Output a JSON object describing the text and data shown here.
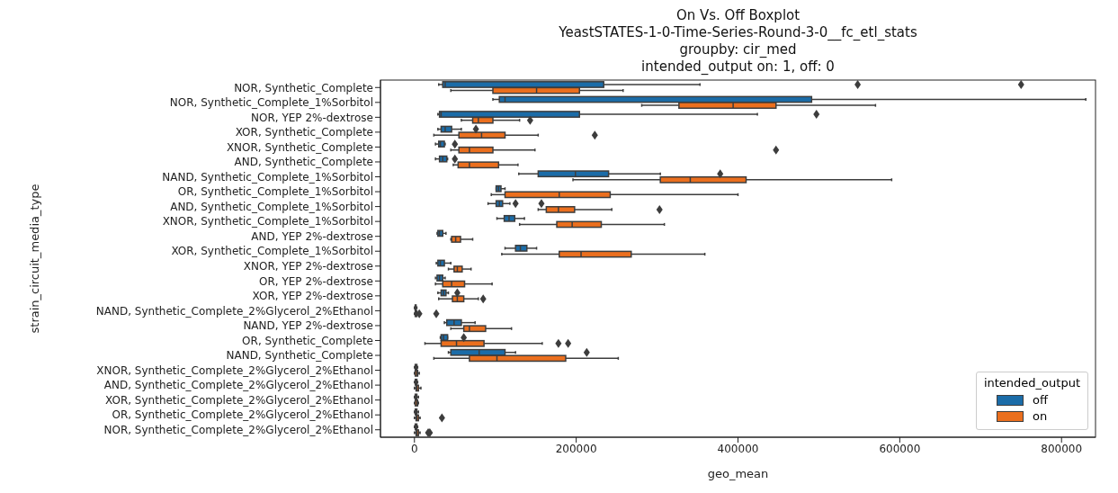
{
  "chart_data": {
    "type": "box",
    "orientation": "horizontal",
    "title": "On Vs. Off Boxplot",
    "subtitle": "YeastSTATES-1-0-Time-Series-Round-3-0__fc_etl_stats\ngroupby: cir_med\nintended_output on: 1, off: 0",
    "xlabel": "geo_mean",
    "ylabel": "strain_circuit_media_type",
    "legend_title": "intended_output",
    "legend": "bottom right",
    "grid": false,
    "categories": [
      "NOR, Synthetic_Complete",
      "NOR, Synthetic_Complete_1%Sorbitol",
      "NOR, YEP 2%-dextrose",
      "XOR, Synthetic_Complete",
      "XNOR, Synthetic_Complete",
      "AND, Synthetic_Complete",
      "NAND, Synthetic_Complete_1%Sorbitol",
      "OR, Synthetic_Complete_1%Sorbitol",
      "AND, Synthetic_Complete_1%Sorbitol",
      "XNOR, Synthetic_Complete_1%Sorbitol",
      "AND, YEP 2%-dextrose",
      "XOR, Synthetic_Complete_1%Sorbitol",
      "XNOR, YEP 2%-dextrose",
      "OR, YEP 2%-dextrose",
      "XOR, YEP 2%-dextrose",
      "NAND, Synthetic_Complete_2%Glycerol_2%Ethanol",
      "NAND, YEP 2%-dextrose",
      "OR, Synthetic_Complete",
      "NAND, Synthetic_Complete",
      "XNOR, Synthetic_Complete_2%Glycerol_2%Ethanol",
      "AND, Synthetic_Complete_2%Glycerol_2%Ethanol",
      "XOR, Synthetic_Complete_2%Glycerol_2%Ethanol",
      "OR, Synthetic_Complete_2%Glycerol_2%Ethanol",
      "NOR, Synthetic_Complete_2%Glycerol_2%Ethanol"
    ],
    "xlim": [
      -42000,
      842000
    ],
    "xticks": [
      0,
      200000,
      400000,
      600000,
      800000
    ],
    "series": [
      {
        "name": "off",
        "color": "#1b6ca8",
        "boxes": [
          {
            "low": 30000,
            "q1": 35000,
            "median": 38000,
            "q3": 234000,
            "high": 353000,
            "outliers": [
              548000,
              750000
            ]
          },
          {
            "low": 97000,
            "q1": 105000,
            "median": 112000,
            "q3": 491000,
            "high": 830000
          },
          {
            "low": 29000,
            "q1": 31000,
            "median": 33000,
            "q3": 204000,
            "high": 424000,
            "outliers": [
              497000
            ]
          },
          {
            "low": 29000,
            "q1": 33000,
            "median": 38000,
            "q3": 46000,
            "high": 58000,
            "outliers": [
              76000
            ]
          },
          {
            "low": 26000,
            "q1": 30000,
            "median": 32000,
            "q3": 37000,
            "high": 38000,
            "outliers": [
              50000
            ]
          },
          {
            "low": 26000,
            "q1": 31000,
            "median": 35000,
            "q3": 40000,
            "high": 41000,
            "outliers": [
              50000
            ]
          },
          {
            "low": 129000,
            "q1": 153000,
            "median": 199000,
            "q3": 240000,
            "high": 304000,
            "outliers": [
              378000
            ]
          },
          {
            "low": 101000,
            "q1": 101000,
            "median": 104000,
            "q3": 107000,
            "high": 112000
          },
          {
            "low": 91000,
            "q1": 101000,
            "median": 105000,
            "q3": 109000,
            "high": 118000,
            "outliers": [
              125000,
              157000
            ]
          },
          {
            "low": 102000,
            "q1": 111000,
            "median": 117000,
            "q3": 124000,
            "high": 136000
          },
          {
            "low": 28000,
            "q1": 29000,
            "median": 31000,
            "q3": 35000,
            "high": 39000
          },
          {
            "low": 112000,
            "q1": 125000,
            "median": 131000,
            "q3": 139000,
            "high": 151000
          },
          {
            "low": 27000,
            "q1": 29000,
            "median": 32000,
            "q3": 37000,
            "high": 45000
          },
          {
            "low": 26000,
            "q1": 28000,
            "median": 31000,
            "q3": 35000,
            "high": 38000
          },
          {
            "low": 29000,
            "q1": 33000,
            "median": 36000,
            "q3": 39000,
            "high": 42000,
            "outliers": [
              53000
            ]
          },
          {
            "low": 0,
            "q1": 1000,
            "median": 1000,
            "q3": 2000,
            "high": 3000
          },
          {
            "low": 37000,
            "q1": 40000,
            "median": 49000,
            "q3": 58000,
            "high": 75000
          },
          {
            "low": 32000,
            "q1": 33000,
            "median": 36000,
            "q3": 41000,
            "high": 41000,
            "outliers": [
              61000
            ]
          },
          {
            "low": 42000,
            "q1": 45000,
            "median": 80000,
            "q3": 112000,
            "high": 125000,
            "outliers": [
              213000
            ]
          },
          {
            "low": 0,
            "q1": 1000,
            "median": 2000,
            "q3": 3000,
            "high": 4000
          },
          {
            "low": 0,
            "q1": 1000,
            "median": 2000,
            "q3": 3000,
            "high": 4000
          },
          {
            "low": 0,
            "q1": 1000,
            "median": 2000,
            "q3": 3000,
            "high": 5000
          },
          {
            "low": 0,
            "q1": 1000,
            "median": 2000,
            "q3": 3000,
            "high": 5000
          },
          {
            "low": 0,
            "q1": 1000,
            "median": 2000,
            "q3": 3000,
            "high": 4000
          }
        ]
      },
      {
        "name": "on",
        "color": "#eb6f1e",
        "boxes": [
          {
            "low": 45000,
            "q1": 97000,
            "median": 151000,
            "q3": 204000,
            "high": 258000
          },
          {
            "low": 281000,
            "q1": 327000,
            "median": 394000,
            "q3": 447000,
            "high": 570000
          },
          {
            "low": 58000,
            "q1": 72000,
            "median": 79000,
            "q3": 97000,
            "high": 130000,
            "outliers": [
              143000
            ]
          },
          {
            "low": 24000,
            "q1": 55000,
            "median": 83000,
            "q3": 112000,
            "high": 153000,
            "outliers": [
              223000
            ]
          },
          {
            "low": 45000,
            "q1": 55000,
            "median": 68000,
            "q3": 97000,
            "high": 149000,
            "outliers": [
              447000
            ]
          },
          {
            "low": 48000,
            "q1": 54000,
            "median": 68000,
            "q3": 104000,
            "high": 128000
          },
          {
            "low": 196000,
            "q1": 304000,
            "median": 341000,
            "q3": 410000,
            "high": 590000
          },
          {
            "low": 95000,
            "q1": 112000,
            "median": 179000,
            "q3": 242000,
            "high": 400000
          },
          {
            "low": 153000,
            "q1": 163000,
            "median": 178000,
            "q3": 198000,
            "high": 244000,
            "outliers": [
              303000
            ]
          },
          {
            "low": 130000,
            "q1": 176000,
            "median": 195000,
            "q3": 231000,
            "high": 309000
          },
          {
            "low": 45000,
            "q1": 46000,
            "median": 51000,
            "q3": 57000,
            "high": 72000
          },
          {
            "low": 108000,
            "q1": 179000,
            "median": 206000,
            "q3": 268000,
            "high": 359000
          },
          {
            "low": 42000,
            "q1": 49000,
            "median": 53000,
            "q3": 59000,
            "high": 70000
          },
          {
            "low": 26000,
            "q1": 35000,
            "median": 46000,
            "q3": 62000,
            "high": 96000
          },
          {
            "low": 30000,
            "q1": 47000,
            "median": 53000,
            "q3": 61000,
            "high": 79000,
            "outliers": [
              85000
            ]
          },
          {
            "low": 0,
            "q1": 1000,
            "median": 2000,
            "q3": 3000,
            "high": 4000,
            "outliers": [
              6000,
              27000
            ]
          },
          {
            "low": 45000,
            "q1": 61000,
            "median": 68000,
            "q3": 88000,
            "high": 120000
          },
          {
            "low": 13000,
            "q1": 33000,
            "median": 52000,
            "q3": 86000,
            "high": 158000,
            "outliers": [
              178000,
              190000
            ]
          },
          {
            "low": 24000,
            "q1": 68000,
            "median": 102000,
            "q3": 187000,
            "high": 252000
          },
          {
            "low": 0,
            "q1": 1000,
            "median": 3000,
            "q3": 4000,
            "high": 6000
          },
          {
            "low": 0,
            "q1": 2000,
            "median": 3000,
            "q3": 5000,
            "high": 8000
          },
          {
            "low": 0,
            "q1": 1000,
            "median": 3000,
            "q3": 4000,
            "high": 5000
          },
          {
            "low": 0,
            "q1": 2000,
            "median": 3000,
            "q3": 5000,
            "high": 7000,
            "outliers": [
              34000
            ]
          },
          {
            "low": 0,
            "q1": 2000,
            "median": 3000,
            "q3": 5000,
            "high": 7000,
            "outliers": [
              17000,
              19000
            ]
          }
        ]
      }
    ]
  }
}
